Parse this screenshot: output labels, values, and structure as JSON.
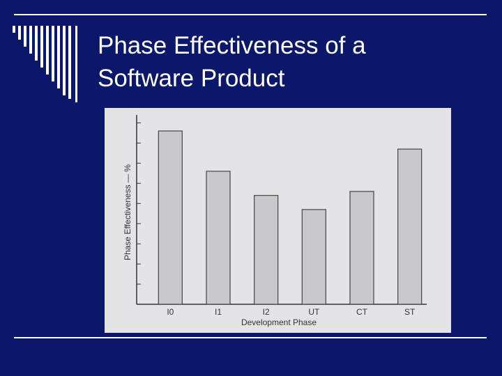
{
  "chart_data": {
    "type": "bar",
    "title": "Phase Effectiveness of a Software Product",
    "x_label": "Development Phase",
    "y_label": "Phase Effectiveness — %",
    "categories": [
      "I0",
      "I1",
      "I2",
      "UT",
      "CT",
      "ST"
    ],
    "values": [
      8.6,
      6.6,
      5.4,
      4.7,
      5.6,
      7.7
    ],
    "color": "#c9c9cb",
    "ylim": [
      0,
      9.5
    ],
    "yticks": [
      0,
      1,
      2,
      3,
      4,
      5,
      6,
      7,
      8,
      9
    ],
    "grid": false
  }
}
